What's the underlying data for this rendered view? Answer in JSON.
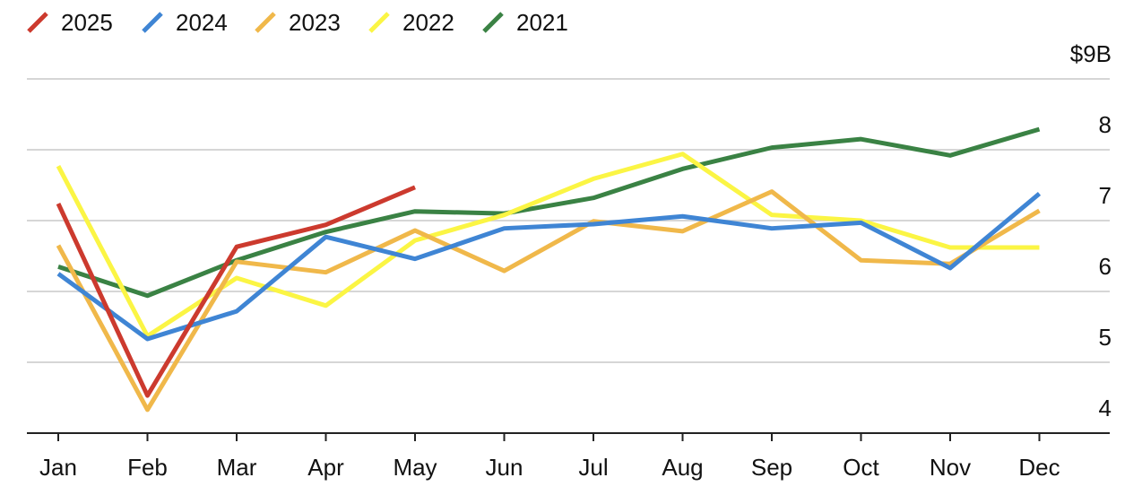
{
  "chart_data": {
    "type": "line",
    "categories": [
      "Jan",
      "Feb",
      "Mar",
      "Apr",
      "May",
      "Jun",
      "Jul",
      "Aug",
      "Sep",
      "Oct",
      "Nov",
      "Dec"
    ],
    "series": [
      {
        "name": "2025",
        "color": "#cc3a2e",
        "values": [
          7.24,
          4.53,
          6.63,
          6.94,
          7.47,
          null,
          null,
          null,
          null,
          null,
          null,
          null
        ]
      },
      {
        "name": "2024",
        "color": "#3f85d4",
        "values": [
          6.25,
          5.33,
          5.72,
          6.77,
          6.46,
          6.89,
          6.95,
          7.06,
          6.89,
          6.97,
          6.33,
          7.38
        ]
      },
      {
        "name": "2023",
        "color": "#f0b84a",
        "values": [
          6.65,
          4.33,
          6.42,
          6.27,
          6.86,
          6.29,
          6.99,
          6.85,
          7.41,
          6.44,
          6.39,
          7.14
        ]
      },
      {
        "name": "2022",
        "color": "#fbf544",
        "values": [
          7.77,
          5.37,
          6.19,
          5.8,
          6.72,
          7.08,
          7.59,
          7.94,
          7.08,
          7.0,
          6.62,
          6.62
        ]
      },
      {
        "name": "2021",
        "color": "#3a8244",
        "values": [
          6.35,
          5.94,
          6.44,
          6.84,
          7.13,
          7.1,
          7.32,
          7.73,
          8.03,
          8.15,
          7.92,
          8.29
        ]
      }
    ],
    "ylim": [
      4,
      9
    ],
    "yticks": [
      4,
      5,
      6,
      7,
      8,
      {
        "value": 9,
        "label": "$9B"
      }
    ],
    "grid": true,
    "legend": "top-left"
  }
}
